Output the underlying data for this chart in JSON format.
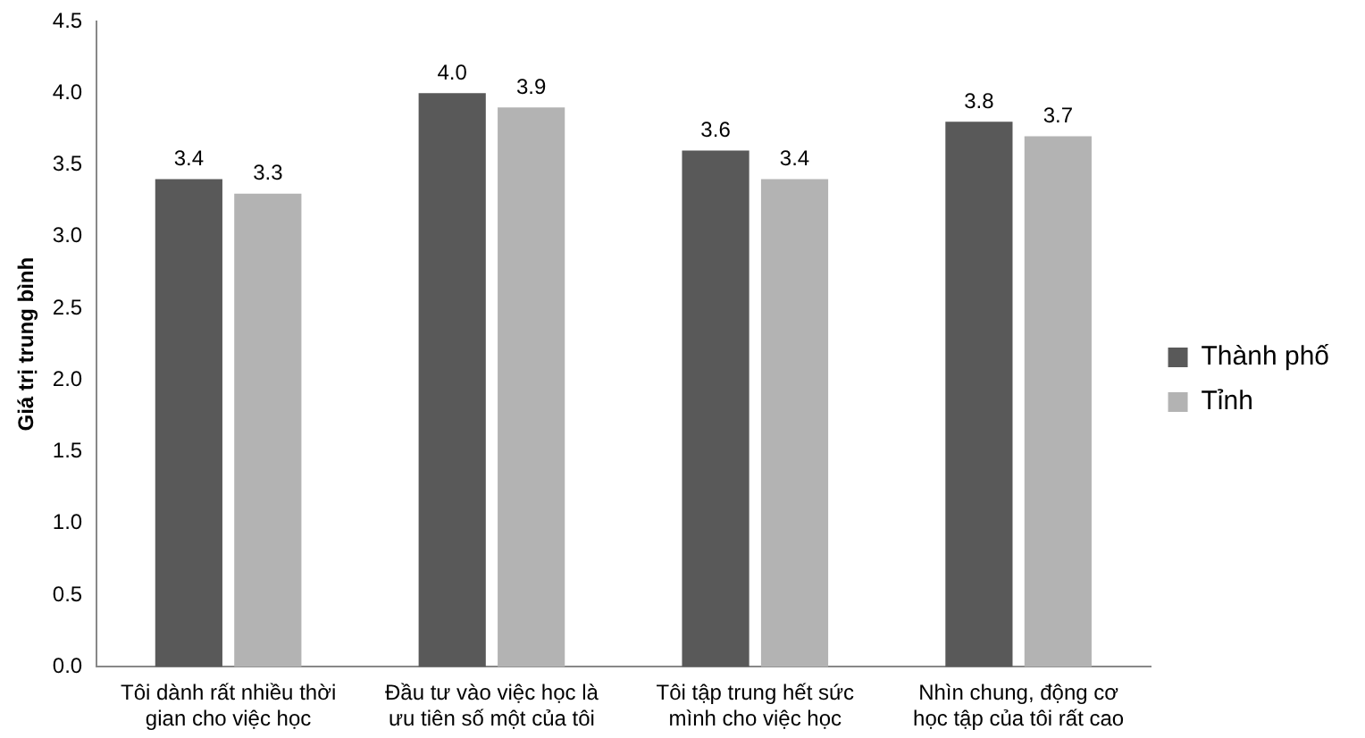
{
  "chart_data": {
    "type": "bar",
    "ylabel": "Giá trị trung bình",
    "categories": [
      "Tôi dành rất nhiều thời gian cho việc học",
      "Đầu tư vào việc học là ưu tiên số một của tôi",
      "Tôi tập trung hết sức mình cho việc học",
      "Nhìn chung, động cơ học tập của tôi rất cao"
    ],
    "series": [
      {
        "name": "Thành phố",
        "color": "#595959",
        "values": [
          3.4,
          4.0,
          3.6,
          3.8
        ],
        "value_labels": [
          "3.4",
          "4.0",
          "3.6",
          "3.8"
        ]
      },
      {
        "name": "Tỉnh",
        "color": "#b3b3b3",
        "values": [
          3.3,
          3.9,
          3.4,
          3.7
        ],
        "value_labels": [
          "3.3",
          "3.9",
          "3.4",
          "3.7"
        ]
      }
    ],
    "ylim": [
      0,
      4.5
    ],
    "yticks": [
      {
        "value": 0,
        "label": "0.0"
      },
      {
        "value": 0.5,
        "label": "0.5"
      },
      {
        "value": 1,
        "label": "1.0"
      },
      {
        "value": 1.5,
        "label": "1.5"
      },
      {
        "value": 2,
        "label": "2.0"
      },
      {
        "value": 2.5,
        "label": "2.5"
      },
      {
        "value": 3,
        "label": "3.0"
      },
      {
        "value": 3.5,
        "label": "3.5"
      },
      {
        "value": 4,
        "label": "4.0"
      },
      {
        "value": 4.5,
        "label": "4.5"
      }
    ],
    "grid": false,
    "legend": "right"
  }
}
